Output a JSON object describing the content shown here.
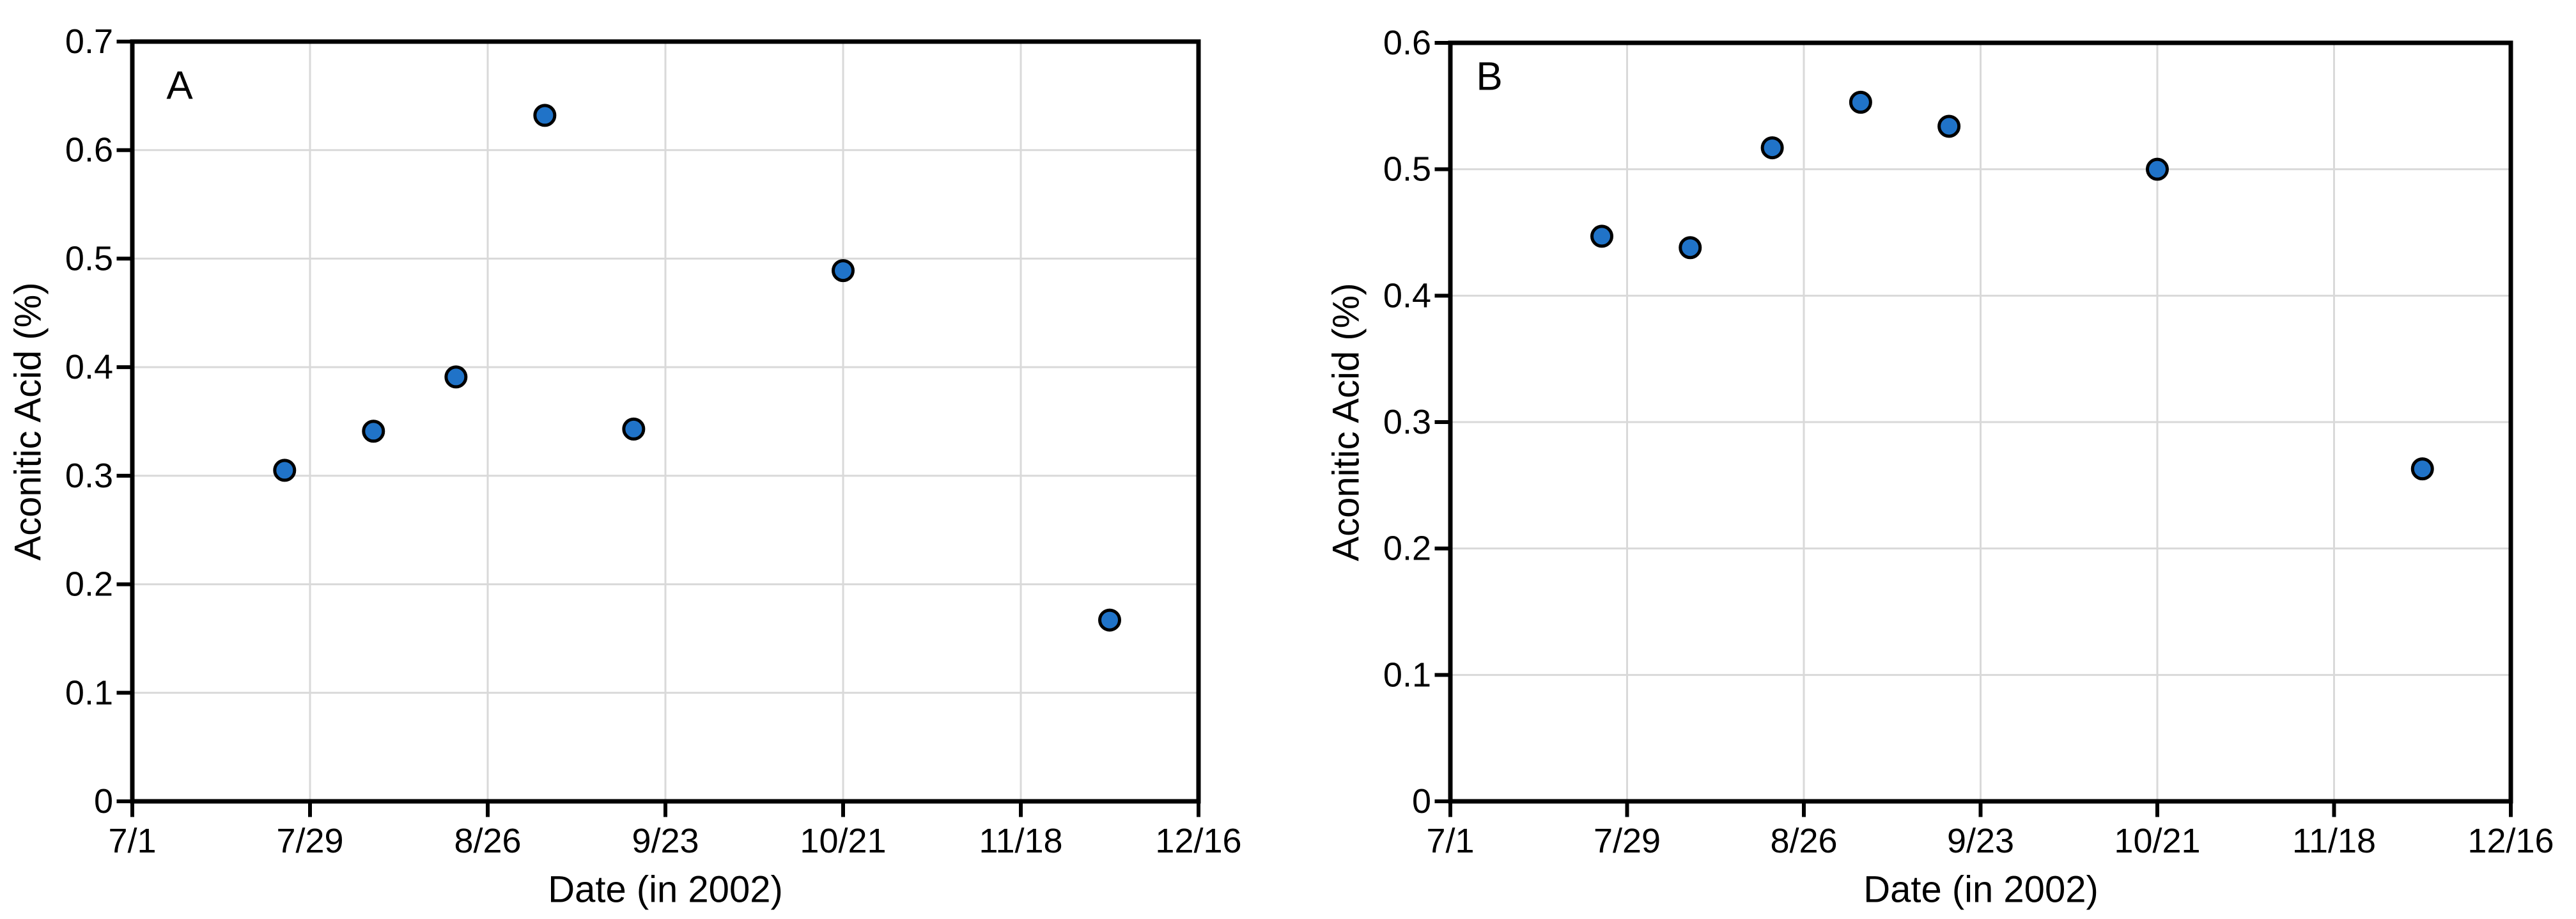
{
  "figure": {
    "background": "#ffffff",
    "marker_fill": "#2073C8",
    "marker_stroke": "#000000",
    "gridline_color": "#D9D9D9",
    "axis_color": "#000000",
    "text_color": "#000000"
  },
  "chart_data": [
    {
      "type": "scatter",
      "panel_label": "A",
      "xlabel": "Date (in 2002)",
      "ylabel": "Aconitic Acid (%)",
      "ylim": [
        0,
        0.7
      ],
      "ytick_step": 0.1,
      "ytick_labels": [
        "0",
        "0.1",
        "0.2",
        "0.3",
        "0.4",
        "0.5",
        "0.6",
        "0.7"
      ],
      "xtick_labels": [
        "7/1",
        "7/29",
        "8/26",
        "9/23",
        "10/21",
        "11/18",
        "12/16"
      ],
      "xtick_days": [
        0,
        28,
        56,
        84,
        112,
        140,
        168
      ],
      "xlim_days": [
        0,
        168
      ],
      "grid": true,
      "legend": null,
      "points": [
        {
          "date": "7/25",
          "day": 24,
          "value": 0.305
        },
        {
          "date": "8/8",
          "day": 38,
          "value": 0.341
        },
        {
          "date": "8/21",
          "day": 51,
          "value": 0.391
        },
        {
          "date": "9/4",
          "day": 65,
          "value": 0.632
        },
        {
          "date": "9/18",
          "day": 79,
          "value": 0.343
        },
        {
          "date": "10/21",
          "day": 112,
          "value": 0.489
        },
        {
          "date": "12/2",
          "day": 154,
          "value": 0.167
        }
      ]
    },
    {
      "type": "scatter",
      "panel_label": "B",
      "xlabel": "Date (in 2002)",
      "ylabel": "Aconitic Acid (%)",
      "ylim": [
        0,
        0.6
      ],
      "ytick_step": 0.1,
      "ytick_labels": [
        "0",
        "0.1",
        "0.2",
        "0.3",
        "0.4",
        "0.5",
        "0.6"
      ],
      "xtick_labels": [
        "7/1",
        "7/29",
        "8/26",
        "9/23",
        "10/21",
        "11/18",
        "12/16"
      ],
      "xtick_days": [
        0,
        28,
        56,
        84,
        112,
        140,
        168
      ],
      "xlim_days": [
        0,
        168
      ],
      "grid": true,
      "legend": null,
      "points": [
        {
          "date": "7/25",
          "day": 24,
          "value": 0.447
        },
        {
          "date": "8/8",
          "day": 38,
          "value": 0.438
        },
        {
          "date": "8/21",
          "day": 51,
          "value": 0.517
        },
        {
          "date": "9/4",
          "day": 65,
          "value": 0.553
        },
        {
          "date": "9/18",
          "day": 79,
          "value": 0.534
        },
        {
          "date": "10/21",
          "day": 112,
          "value": 0.5
        },
        {
          "date": "12/2",
          "day": 154,
          "value": 0.263
        }
      ]
    }
  ]
}
